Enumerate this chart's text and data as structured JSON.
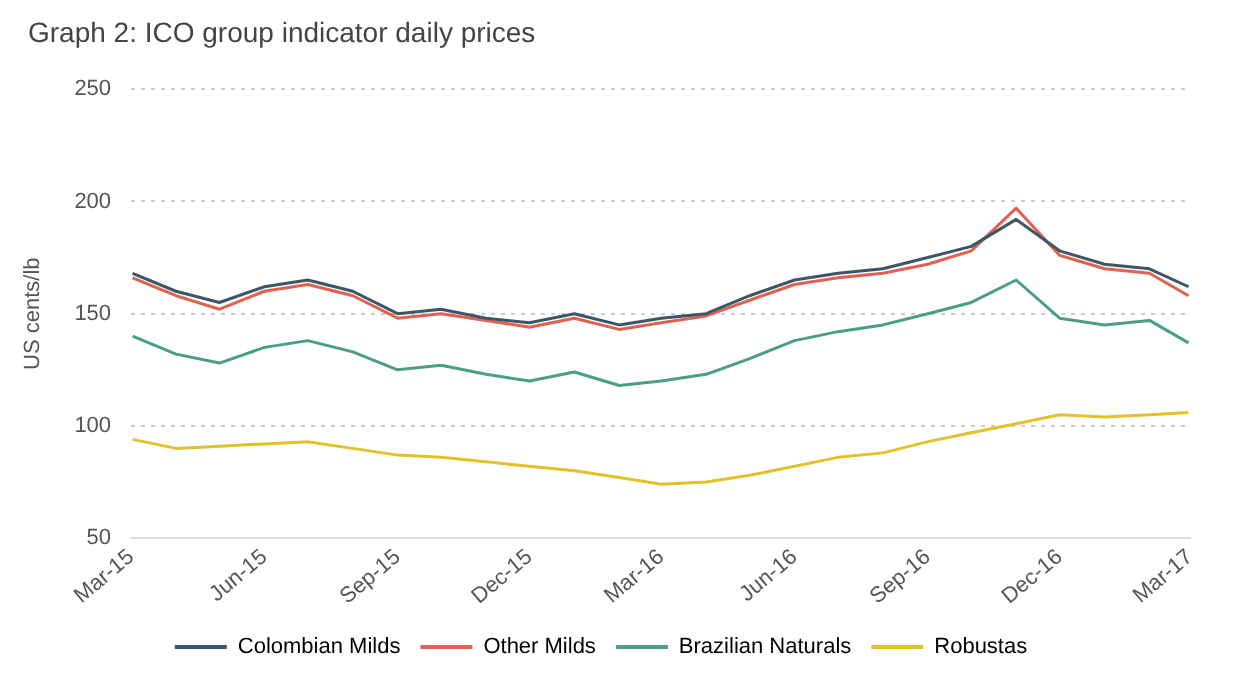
{
  "chart_data": {
    "type": "line",
    "title": "Graph 2: ICO group indicator daily prices",
    "ylabel": "US cents/lb",
    "x": [
      "2015-03-02",
      "2015-04-01",
      "2015-05-01",
      "2015-06-01",
      "2015-07-01",
      "2015-08-01",
      "2015-09-01",
      "2015-10-01",
      "2015-11-01",
      "2015-12-01",
      "2016-01-01",
      "2016-02-01",
      "2016-03-01",
      "2016-04-01",
      "2016-05-01",
      "2016-06-01",
      "2016-07-01",
      "2016-08-01",
      "2016-09-01",
      "2016-10-01",
      "2016-11-01",
      "2016-12-01",
      "2017-01-01",
      "2017-02-01",
      "2017-02-28"
    ],
    "series": [
      {
        "name": "Colombian Milds",
        "color": "#3d5566",
        "values": [
          168,
          160,
          155,
          162,
          165,
          160,
          150,
          152,
          148,
          146,
          150,
          145,
          148,
          150,
          158,
          165,
          168,
          170,
          175,
          180,
          192,
          178,
          172,
          170,
          162
        ]
      },
      {
        "name": "Other Milds",
        "color": "#e0614f",
        "values": [
          166,
          158,
          152,
          160,
          163,
          158,
          148,
          150,
          147,
          144,
          148,
          143,
          146,
          149,
          156,
          163,
          166,
          168,
          172,
          178,
          197,
          176,
          170,
          168,
          158
        ]
      },
      {
        "name": "Brazilian Naturals",
        "color": "#4a9e86",
        "values": [
          140,
          132,
          128,
          135,
          138,
          133,
          125,
          127,
          123,
          120,
          124,
          118,
          120,
          123,
          130,
          138,
          142,
          145,
          150,
          155,
          165,
          148,
          145,
          147,
          137
        ]
      },
      {
        "name": "Robustas",
        "color": "#e3c12b",
        "values": [
          94,
          90,
          91,
          92,
          93,
          90,
          87,
          86,
          84,
          82,
          80,
          77,
          74,
          75,
          78,
          82,
          86,
          88,
          93,
          97,
          101,
          105,
          104,
          105,
          106
        ]
      }
    ],
    "xlim": [
      "2015-03-01",
      "2017-03-01"
    ],
    "xticks": [
      {
        "value": "2015-03-01",
        "label": "Mar-15"
      },
      {
        "value": "2015-06-01",
        "label": "Jun-15"
      },
      {
        "value": "2015-09-01",
        "label": "Sep-15"
      },
      {
        "value": "2015-12-01",
        "label": "Dec-15"
      },
      {
        "value": "2016-03-01",
        "label": "Mar-16"
      },
      {
        "value": "2016-06-01",
        "label": "Jun-16"
      },
      {
        "value": "2016-09-01",
        "label": "Sep-16"
      },
      {
        "value": "2016-12-01",
        "label": "Dec-16"
      },
      {
        "value": "2017-03-01",
        "label": "Mar-17"
      }
    ],
    "ylim": [
      50,
      250
    ],
    "yticks": [
      50,
      100,
      150,
      200,
      250
    ],
    "grid": "y",
    "legend": "bottom",
    "marker": "none",
    "line_style": "solid"
  }
}
